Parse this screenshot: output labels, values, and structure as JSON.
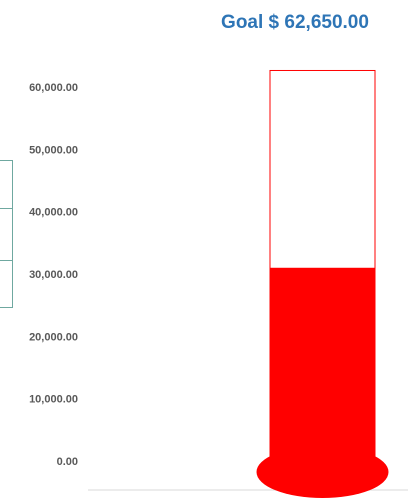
{
  "chart_data": {
    "type": "bar",
    "title": "Goal $ 62,650.00",
    "goal": 62650,
    "value": 31000,
    "ylim": [
      0,
      66000
    ],
    "y_ticks": [
      0,
      10000,
      20000,
      30000,
      40000,
      50000,
      60000
    ],
    "y_tick_labels": [
      "0.00",
      "10,000.00",
      "20,000.00",
      "30,000.00",
      "40,000.00",
      "50,000.00",
      "60,000.00"
    ],
    "grid": false,
    "colors": {
      "fill": "#ff0000",
      "outline": "#ff0000",
      "title": "#2e75b6",
      "ticks": "#595959"
    }
  }
}
